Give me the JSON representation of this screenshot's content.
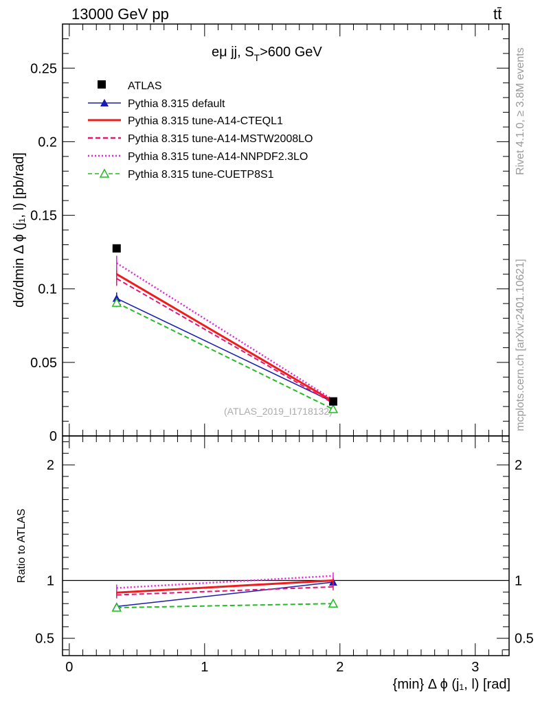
{
  "header": {
    "left": "13000 GeV pp",
    "right": "tt̄"
  },
  "side_labels": {
    "rivet": "Rivet 4.1.0, ≥ 3.8M events",
    "mcplots": "mcplots.cern.ch [arXiv:2401.10621]"
  },
  "chart_data": [
    {
      "type": "line",
      "panel": "main",
      "title": "eμ jj, S_T>600 GeV",
      "title_main": "eμ jj, S",
      "title_sub": "T",
      "title_tail": ">600 GeV",
      "ylabel": "dσ/dmin Δ ϕ (j₁, l) [pb/rad]",
      "xlabel": "{min} Δ ϕ (j₁, l) [rad]",
      "xlim": [
        -0.05,
        3.25
      ],
      "ylim": [
        0,
        0.28
      ],
      "yticks": [
        0,
        0.05,
        0.1,
        0.15,
        0.2,
        0.25
      ],
      "ytick_labels": [
        "0",
        "0.05",
        "0.1",
        "0.15",
        "0.2",
        "0.25"
      ],
      "xticks": [
        0,
        1,
        2,
        3
      ],
      "xtick_labels": [
        "0",
        "1",
        "2",
        "3"
      ],
      "x": [
        0.35,
        1.95
      ],
      "watermark": "(ATLAS_2019_I1718132)",
      "legend_position": "top-left",
      "data": {
        "name": "ATLAS",
        "values": [
          0.1275,
          0.0235
        ]
      },
      "series": [
        {
          "name": "Pythia 8.315 default",
          "color": "#1a1ab4",
          "dash": "solid",
          "marker": "triangle",
          "values": [
            0.0935,
            0.023
          ],
          "errors": [
            0.004,
            0.001
          ]
        },
        {
          "name": "Pythia 8.315 tune-A14-CTEQL1",
          "color": "#ee1c1c",
          "dash": "solid-thick",
          "marker": "none",
          "values": [
            0.11,
            0.0235
          ],
          "errors": [
            0.005,
            0.001
          ]
        },
        {
          "name": "Pythia 8.315 tune-A14-MSTW2008LO",
          "color": "#e8136e",
          "dash": "dashed",
          "marker": "none",
          "values": [
            0.107,
            0.0222
          ],
          "errors": [
            0.005,
            0.001
          ]
        },
        {
          "name": "Pythia 8.315 tune-A14-NNPDF2.3LO",
          "color": "#e81fd6",
          "dash": "dotted",
          "marker": "none",
          "values": [
            0.1175,
            0.0245
          ],
          "errors": [
            0.005,
            0.001
          ]
        },
        {
          "name": "Pythia 8.315 tune-CUETP8S1",
          "color": "#22bb22",
          "dash": "dashed",
          "marker": "open-triangle",
          "values": [
            0.0905,
            0.0182
          ],
          "errors": [
            0.003,
            0.001
          ]
        }
      ]
    },
    {
      "type": "line",
      "panel": "ratio",
      "ylabel": "Ratio to ATLAS",
      "ylim": [
        0.35,
        2.25
      ],
      "yticks": [
        0.5,
        1,
        2
      ],
      "ytick_labels": [
        "0.5",
        "1",
        "2"
      ],
      "reference": 1,
      "x": [
        0.35,
        1.95
      ],
      "series": [
        {
          "name": "Pythia 8.315 default",
          "values": [
            0.775,
            0.985
          ],
          "errors": [
            0.03,
            0.03
          ]
        },
        {
          "name": "Pythia 8.315 tune-A14-CTEQL1",
          "values": [
            0.895,
            1.0
          ],
          "errors": [
            0.03,
            0.03
          ]
        },
        {
          "name": "Pythia 8.315 tune-A14-MSTW2008LO",
          "values": [
            0.875,
            0.945
          ],
          "errors": [
            0.03,
            0.03
          ]
        },
        {
          "name": "Pythia 8.315 tune-A14-NNPDF2.3LO",
          "values": [
            0.935,
            1.04
          ],
          "errors": [
            0.03,
            0.03
          ]
        },
        {
          "name": "Pythia 8.315 tune-CUETP8S1",
          "values": [
            0.765,
            0.8
          ],
          "errors": [
            0.02,
            0.035
          ]
        }
      ]
    }
  ]
}
